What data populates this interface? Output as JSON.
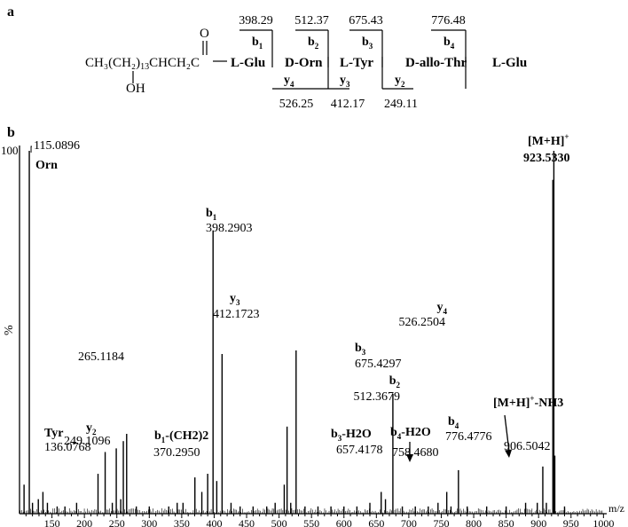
{
  "panel_a": {
    "label": "a",
    "chain_left": "CH₃(CH₂)",
    "chain_sub": "13",
    "chain_right": "CHCH₂C",
    "oxygen": "O",
    "hydroxyl": "OH",
    "residues": [
      "L-Glu",
      "D-Orn",
      "L-Tyr",
      "D-allo-Thr",
      "L-Glu"
    ],
    "b_fragments": [
      {
        "ion": "b",
        "num": "1",
        "mass": "398.29"
      },
      {
        "ion": "b",
        "num": "2",
        "mass": "512.37"
      },
      {
        "ion": "b",
        "num": "3",
        "mass": "675.43"
      },
      {
        "ion": "b",
        "num": "4",
        "mass": "776.48"
      }
    ],
    "y_fragments": [
      {
        "ion": "y",
        "num": "4",
        "mass": "526.25"
      },
      {
        "ion": "y",
        "num": "3",
        "mass": "412.17"
      },
      {
        "ion": "y",
        "num": "2",
        "mass": "249.11"
      }
    ]
  },
  "panel_b": {
    "label": "b"
  },
  "chart_data": {
    "type": "bar",
    "title": "",
    "xlabel": "m/z",
    "ylabel": "%",
    "xlim": [
      100,
      1000
    ],
    "ylim": [
      0,
      100
    ],
    "x_ticks": [
      150,
      200,
      250,
      300,
      350,
      400,
      450,
      500,
      550,
      600,
      650,
      700,
      750,
      800,
      850,
      900,
      950,
      1000
    ],
    "y_tick_labels": [
      "100"
    ],
    "peaks": [
      {
        "mz": 107,
        "rel": 8
      },
      {
        "mz": 115.0896,
        "rel": 100
      },
      {
        "mz": 120,
        "rel": 3
      },
      {
        "mz": 129,
        "rel": 4
      },
      {
        "mz": 136.0768,
        "rel": 6
      },
      {
        "mz": 143,
        "rel": 3
      },
      {
        "mz": 158,
        "rel": 2
      },
      {
        "mz": 170,
        "rel": 2
      },
      {
        "mz": 188,
        "rel": 3
      },
      {
        "mz": 221,
        "rel": 11
      },
      {
        "mz": 232,
        "rel": 17
      },
      {
        "mz": 243,
        "rel": 3
      },
      {
        "mz": 249.1096,
        "rel": 18
      },
      {
        "mz": 256,
        "rel": 4
      },
      {
        "mz": 260,
        "rel": 20
      },
      {
        "mz": 265.1184,
        "rel": 22
      },
      {
        "mz": 280,
        "rel": 2
      },
      {
        "mz": 300,
        "rel": 2
      },
      {
        "mz": 330,
        "rel": 2
      },
      {
        "mz": 343,
        "rel": 3
      },
      {
        "mz": 352,
        "rel": 3
      },
      {
        "mz": 370.295,
        "rel": 10
      },
      {
        "mz": 381,
        "rel": 6
      },
      {
        "mz": 390,
        "rel": 11
      },
      {
        "mz": 398.2903,
        "rel": 78
      },
      {
        "mz": 404,
        "rel": 9
      },
      {
        "mz": 412.1723,
        "rel": 44
      },
      {
        "mz": 426,
        "rel": 3
      },
      {
        "mz": 440,
        "rel": 2
      },
      {
        "mz": 460,
        "rel": 2
      },
      {
        "mz": 481,
        "rel": 2
      },
      {
        "mz": 494,
        "rel": 3
      },
      {
        "mz": 508,
        "rel": 8
      },
      {
        "mz": 512.3679,
        "rel": 24
      },
      {
        "mz": 518,
        "rel": 3
      },
      {
        "mz": 526.2504,
        "rel": 45
      },
      {
        "mz": 540,
        "rel": 2
      },
      {
        "mz": 560,
        "rel": 2
      },
      {
        "mz": 580,
        "rel": 2
      },
      {
        "mz": 600,
        "rel": 2
      },
      {
        "mz": 620,
        "rel": 2
      },
      {
        "mz": 640,
        "rel": 3
      },
      {
        "mz": 657.4178,
        "rel": 6
      },
      {
        "mz": 664,
        "rel": 4
      },
      {
        "mz": 675.4297,
        "rel": 33
      },
      {
        "mz": 690,
        "rel": 2
      },
      {
        "mz": 710,
        "rel": 2
      },
      {
        "mz": 730,
        "rel": 2
      },
      {
        "mz": 745,
        "rel": 3
      },
      {
        "mz": 758.468,
        "rel": 6
      },
      {
        "mz": 765,
        "rel": 2
      },
      {
        "mz": 776.4776,
        "rel": 12
      },
      {
        "mz": 790,
        "rel": 2
      },
      {
        "mz": 820,
        "rel": 2
      },
      {
        "mz": 850,
        "rel": 2
      },
      {
        "mz": 880,
        "rel": 3
      },
      {
        "mz": 898,
        "rel": 3
      },
      {
        "mz": 906.5042,
        "rel": 13
      },
      {
        "mz": 912,
        "rel": 3
      },
      {
        "mz": 922,
        "rel": 92
      },
      {
        "mz": 923.533,
        "rel": 100
      },
      {
        "mz": 925,
        "rel": 16
      },
      {
        "mz": 940,
        "rel": 2
      }
    ],
    "annotations": [
      {
        "mz": 115.0896,
        "ion": "",
        "num": "",
        "sup": "",
        "label": "Orn",
        "value": "115.0896"
      },
      {
        "mz": 136.0768,
        "ion": "",
        "num": "",
        "sup": "",
        "label": "Tyr",
        "value": "136.0768"
      },
      {
        "mz": 249.1096,
        "ion": "y",
        "num": "2",
        "sup": "",
        "label": "",
        "value": "249.1096"
      },
      {
        "mz": 265.1184,
        "ion": "",
        "num": "",
        "sup": "",
        "label": "",
        "value": "265.1184"
      },
      {
        "mz": 370.295,
        "ion": "b",
        "num": "1",
        "sup": "",
        "label": "-(CH2)2",
        "value": "370.2950"
      },
      {
        "mz": 398.2903,
        "ion": "b",
        "num": "1",
        "sup": "",
        "label": "",
        "value": "398.2903"
      },
      {
        "mz": 412.1723,
        "ion": "y",
        "num": "3",
        "sup": "",
        "label": "",
        "value": "412.1723"
      },
      {
        "mz": 526.2504,
        "ion": "y",
        "num": "4",
        "sup": "",
        "label": "",
        "value": "526.2504"
      },
      {
        "mz": 512.3679,
        "ion": "b",
        "num": "2",
        "sup": "",
        "label": "",
        "value": "512.3679"
      },
      {
        "mz": 675.4297,
        "ion": "b",
        "num": "3",
        "sup": "",
        "label": "",
        "value": "675.4297"
      },
      {
        "mz": 657.4178,
        "ion": "b",
        "num": "3",
        "sup": "",
        "label": "-H2O",
        "value": "657.4178"
      },
      {
        "mz": 758.468,
        "ion": "b",
        "num": "4",
        "sup": "",
        "label": "-H2O",
        "value": "758.4680"
      },
      {
        "mz": 776.4776,
        "ion": "b",
        "num": "4",
        "sup": "",
        "label": "",
        "value": "776.4776"
      },
      {
        "mz": 906.5042,
        "ion": "[M+H]",
        "num": "",
        "sup": "+",
        "label": "-NH3",
        "value": "906.5042"
      },
      {
        "mz": 923.533,
        "ion": "[M+H]",
        "num": "",
        "sup": "+",
        "label": "",
        "value": "923.5330"
      }
    ],
    "highlight_color": "#1a1aaa"
  }
}
